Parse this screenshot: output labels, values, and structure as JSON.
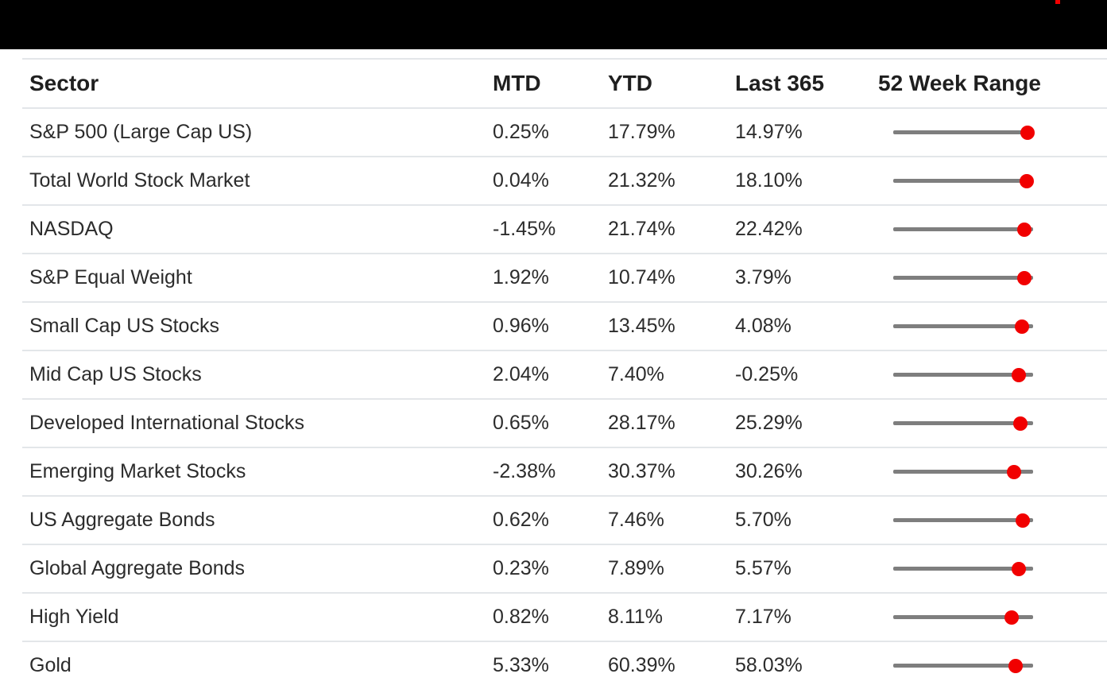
{
  "topbar": {
    "background": "#000000",
    "logo_mark_color": "#f10000"
  },
  "colors": {
    "separator": "#e3e6e9",
    "range_track_gray": "#7e7e7e",
    "range_dot_red": "#f10000",
    "header_text": "#1f1f1f",
    "row_text": "#2c2c2c"
  },
  "table": {
    "columns": [
      {
        "key": "sector",
        "label": "Sector"
      },
      {
        "key": "mtd",
        "label": "MTD"
      },
      {
        "key": "ytd",
        "label": "YTD"
      },
      {
        "key": "last365",
        "label": "Last 365"
      },
      {
        "key": "range",
        "label": "52 Week Range"
      }
    ],
    "rows": [
      {
        "sector": "S&P 500 (Large Cap US)",
        "mtd": "0.25%",
        "ytd": "17.79%",
        "last365": "14.97%",
        "range_dot_fraction": 0.96
      },
      {
        "sector": "Total World Stock Market",
        "mtd": "0.04%",
        "ytd": "21.32%",
        "last365": "18.10%",
        "range_dot_fraction": 0.955
      },
      {
        "sector": "NASDAQ",
        "mtd": "-1.45%",
        "ytd": "21.74%",
        "last365": "22.42%",
        "range_dot_fraction": 0.94
      },
      {
        "sector": "S&P Equal Weight",
        "mtd": "1.92%",
        "ytd": "10.74%",
        "last365": "3.79%",
        "range_dot_fraction": 0.938
      },
      {
        "sector": "Small Cap US Stocks",
        "mtd": "0.96%",
        "ytd": "13.45%",
        "last365": "4.08%",
        "range_dot_fraction": 0.92
      },
      {
        "sector": "Mid Cap US Stocks",
        "mtd": "2.04%",
        "ytd": "7.40%",
        "last365": "-0.25%",
        "range_dot_fraction": 0.898
      },
      {
        "sector": "Developed International Stocks",
        "mtd": "0.65%",
        "ytd": "28.17%",
        "last365": "25.29%",
        "range_dot_fraction": 0.91
      },
      {
        "sector": "Emerging Market Stocks",
        "mtd": "-2.38%",
        "ytd": "30.37%",
        "last365": "30.26%",
        "range_dot_fraction": 0.862
      },
      {
        "sector": "US Aggregate Bonds",
        "mtd": "0.62%",
        "ytd": "7.46%",
        "last365": "5.70%",
        "range_dot_fraction": 0.926
      },
      {
        "sector": "Global Aggregate Bonds",
        "mtd": "0.23%",
        "ytd": "7.89%",
        "last365": "5.57%",
        "range_dot_fraction": 0.898
      },
      {
        "sector": "High Yield",
        "mtd": "0.82%",
        "ytd": "8.11%",
        "last365": "7.17%",
        "range_dot_fraction": 0.845
      },
      {
        "sector": "Gold",
        "mtd": "5.33%",
        "ytd": "60.39%",
        "last365": "58.03%",
        "range_dot_fraction": 0.875
      }
    ]
  },
  "chart_data": {
    "type": "table",
    "title": "Sector performance with 52 week range indicators",
    "columns": [
      "Sector",
      "MTD",
      "YTD",
      "Last 365",
      "52 Week Range"
    ],
    "rows": [
      {
        "sector": "S&P 500 (Large Cap US)",
        "mtd_pct": 0.25,
        "ytd_pct": 17.79,
        "last365_pct": 14.97,
        "range_position": 0.96
      },
      {
        "sector": "Total World Stock Market",
        "mtd_pct": 0.04,
        "ytd_pct": 21.32,
        "last365_pct": 18.1,
        "range_position": 0.955
      },
      {
        "sector": "NASDAQ",
        "mtd_pct": -1.45,
        "ytd_pct": 21.74,
        "last365_pct": 22.42,
        "range_position": 0.94
      },
      {
        "sector": "S&P Equal Weight",
        "mtd_pct": 1.92,
        "ytd_pct": 10.74,
        "last365_pct": 3.79,
        "range_position": 0.938
      },
      {
        "sector": "Small Cap US Stocks",
        "mtd_pct": 0.96,
        "ytd_pct": 13.45,
        "last365_pct": 4.08,
        "range_position": 0.92
      },
      {
        "sector": "Mid Cap US Stocks",
        "mtd_pct": 2.04,
        "ytd_pct": 7.4,
        "last365_pct": -0.25,
        "range_position": 0.898
      },
      {
        "sector": "Developed International Stocks",
        "mtd_pct": 0.65,
        "ytd_pct": 28.17,
        "last365_pct": 25.29,
        "range_position": 0.91
      },
      {
        "sector": "Emerging Market Stocks",
        "mtd_pct": -2.38,
        "ytd_pct": 30.37,
        "last365_pct": 30.26,
        "range_position": 0.862
      },
      {
        "sector": "US Aggregate Bonds",
        "mtd_pct": 0.62,
        "ytd_pct": 7.46,
        "last365_pct": 5.7,
        "range_position": 0.926
      },
      {
        "sector": "Global Aggregate Bonds",
        "mtd_pct": 0.23,
        "ytd_pct": 7.89,
        "last365_pct": 5.57,
        "range_position": 0.898
      },
      {
        "sector": "High Yield",
        "mtd_pct": 0.82,
        "ytd_pct": 8.11,
        "last365_pct": 7.17,
        "range_position": 0.845
      },
      {
        "sector": "Gold",
        "mtd_pct": 5.33,
        "ytd_pct": 60.39,
        "last365_pct": 58.03,
        "range_position": 0.875
      }
    ],
    "notes": "52 Week Range rendered as a gray horizontal track with a red dot; range_position is the dot location as a fraction (0 = 52-week low end of track, 1 = high end). Legend/grid: none. Row separators light gray.",
    "layout": {
      "grid": "horizontal row separators only",
      "legend": "none"
    }
  }
}
